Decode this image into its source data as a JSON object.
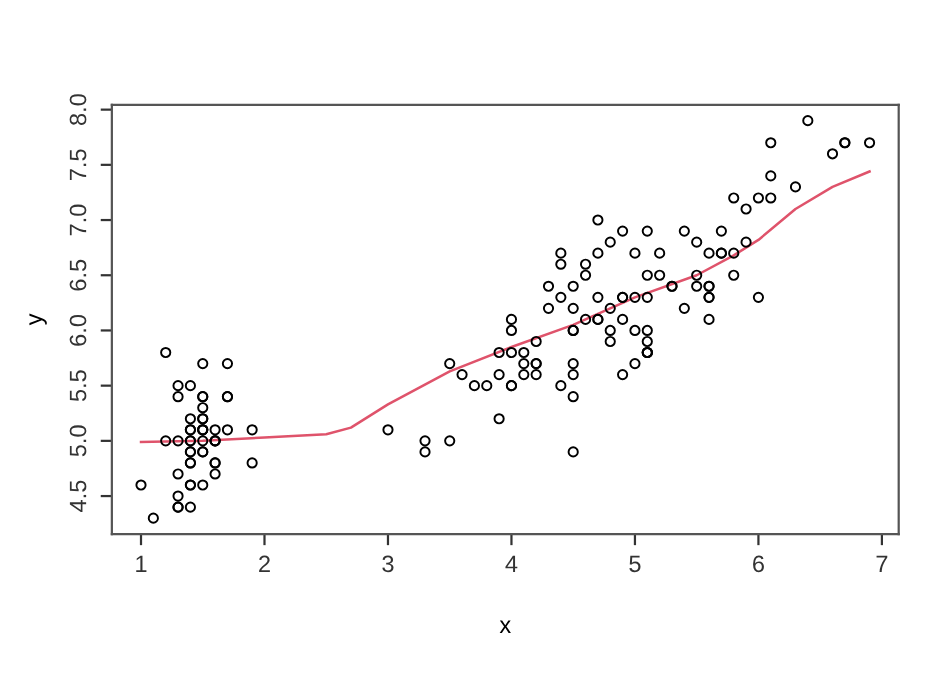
{
  "chart_data": {
    "type": "scatter",
    "xlabel": "x",
    "ylabel": "y",
    "xlim": [
      0.764,
      7.136
    ],
    "ylim": [
      4.156,
      8.044
    ],
    "xticks": [
      1,
      2,
      3,
      4,
      5,
      6,
      7
    ],
    "yticks": [
      4.5,
      {
        "value": 5,
        "label": "5.0"
      },
      5.5,
      {
        "value": 6,
        "label": "6.0"
      },
      6.5,
      {
        "value": 7,
        "label": "7.0"
      },
      7.5,
      {
        "value": 8,
        "label": "8.0"
      }
    ],
    "grid": false,
    "legend": false,
    "series": [
      {
        "color": "#000000",
        "marker": "circle",
        "x": [
          1.4,
          1.4,
          1.3,
          1.5,
          1.4,
          1.7,
          1.4,
          1.5,
          1.4,
          1.5,
          1.5,
          1.6,
          1.4,
          1.1,
          1.2,
          1.5,
          1.3,
          1.4,
          1.7,
          1.5,
          1.7,
          1.5,
          1.0,
          1.7,
          1.9,
          1.6,
          1.6,
          1.5,
          1.4,
          1.6,
          1.6,
          1.5,
          1.5,
          1.4,
          1.5,
          1.2,
          1.3,
          1.4,
          1.3,
          1.5,
          1.3,
          1.3,
          1.3,
          1.6,
          1.9,
          1.4,
          1.6,
          1.4,
          1.5,
          1.4,
          4.7,
          4.5,
          4.9,
          4.0,
          4.6,
          4.5,
          4.7,
          3.3,
          4.6,
          3.9,
          3.5,
          4.2,
          4.0,
          4.7,
          3.6,
          4.4,
          4.5,
          4.1,
          4.5,
          3.9,
          4.8,
          4.0,
          4.9,
          4.7,
          4.3,
          4.4,
          4.8,
          5.0,
          4.5,
          3.5,
          3.8,
          3.7,
          3.9,
          5.1,
          4.5,
          4.5,
          4.7,
          4.4,
          4.1,
          4.0,
          4.4,
          4.6,
          4.0,
          3.3,
          4.2,
          4.2,
          4.2,
          4.3,
          3.0,
          4.1,
          6.0,
          5.1,
          5.9,
          5.6,
          5.8,
          6.6,
          4.5,
          6.3,
          5.8,
          6.1,
          5.1,
          5.3,
          5.5,
          5.0,
          5.1,
          5.3,
          5.5,
          6.7,
          6.9,
          5.0,
          5.7,
          4.9,
          6.7,
          4.9,
          5.7,
          6.0,
          4.8,
          4.9,
          5.6,
          5.8,
          6.1,
          6.4,
          5.6,
          5.1,
          5.6,
          6.1,
          5.6,
          5.5,
          4.8,
          5.4,
          5.6,
          5.1,
          5.1,
          5.9,
          5.7,
          5.2,
          5.0,
          5.2,
          5.4,
          5.1
        ],
        "values": [
          5.1,
          4.9,
          4.7,
          4.6,
          5.0,
          5.4,
          4.6,
          5.0,
          4.4,
          4.9,
          5.4,
          4.8,
          4.8,
          4.3,
          5.8,
          5.7,
          5.4,
          5.1,
          5.7,
          5.1,
          5.4,
          5.1,
          4.6,
          5.1,
          4.8,
          5.0,
          5.0,
          5.2,
          5.2,
          4.7,
          4.8,
          5.4,
          5.2,
          5.5,
          4.9,
          5.0,
          5.5,
          4.9,
          4.4,
          5.1,
          5.0,
          4.5,
          4.4,
          5.0,
          5.1,
          4.8,
          5.1,
          4.6,
          5.3,
          5.0,
          7.0,
          6.4,
          6.9,
          5.5,
          6.5,
          5.7,
          6.3,
          4.9,
          6.6,
          5.2,
          5.0,
          5.9,
          6.0,
          6.1,
          5.6,
          6.7,
          5.6,
          5.8,
          6.2,
          5.6,
          5.9,
          6.1,
          6.3,
          6.1,
          6.4,
          6.6,
          6.8,
          6.7,
          6.0,
          5.7,
          5.5,
          5.5,
          5.8,
          6.0,
          5.4,
          6.0,
          6.7,
          6.3,
          5.6,
          5.5,
          5.5,
          6.1,
          5.8,
          5.0,
          5.6,
          5.7,
          5.7,
          6.2,
          5.1,
          5.7,
          6.3,
          5.8,
          7.1,
          6.3,
          6.5,
          7.6,
          4.9,
          7.3,
          6.7,
          7.2,
          6.5,
          6.4,
          6.8,
          5.7,
          5.8,
          6.4,
          6.5,
          7.7,
          7.7,
          6.0,
          6.9,
          5.6,
          7.7,
          6.3,
          6.7,
          7.2,
          6.2,
          6.1,
          6.4,
          7.2,
          7.4,
          7.9,
          6.4,
          6.3,
          6.1,
          7.7,
          6.3,
          6.4,
          6.0,
          6.9,
          6.7,
          6.9,
          5.8,
          6.8,
          6.7,
          6.7,
          6.3,
          6.5,
          6.2,
          5.9
        ]
      },
      {
        "type": "line",
        "color": "#df536b",
        "line_style": "solid",
        "x": [
          1.0,
          1.5,
          2.0,
          2.5,
          2.7,
          3.0,
          3.5,
          4.0,
          4.5,
          5.0,
          5.5,
          5.8,
          6.0,
          6.3,
          6.6,
          6.9
        ],
        "values": [
          4.99,
          5.0,
          5.03,
          5.06,
          5.12,
          5.33,
          5.63,
          5.85,
          6.05,
          6.3,
          6.5,
          6.68,
          6.82,
          7.1,
          7.3,
          7.44
        ]
      }
    ]
  }
}
